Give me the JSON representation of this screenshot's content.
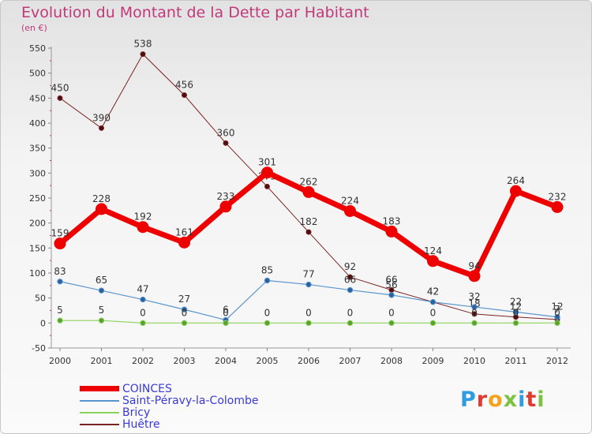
{
  "title": "Evolution du Montant de la Dette par Habitant",
  "subtitle": "(en €)",
  "logo": {
    "text": "Proxiti",
    "colors": [
      "#2f9be0",
      "#e03b2f",
      "#f2a21b",
      "#7cc242",
      "#2f9be0",
      "#e03b2f",
      "#7cc242"
    ]
  },
  "chart_data": {
    "type": "line",
    "x": [
      "2000",
      "2001",
      "2002",
      "2003",
      "2004",
      "2005",
      "2006",
      "2007",
      "2008",
      "2009",
      "2010",
      "2011",
      "2012"
    ],
    "ylim": [
      -50,
      550
    ],
    "yticks": [
      "-50",
      "0",
      "50",
      "100",
      "150",
      "200",
      "250",
      "300",
      "350",
      "400",
      "450",
      "500",
      "550"
    ],
    "grid": false,
    "legend_position": "bottom-left",
    "series": [
      {
        "name": "Huêtre",
        "color": "#7a2323",
        "values": [
          450,
          390,
          538,
          456,
          360,
          273,
          182,
          92,
          66,
          42,
          18,
          12,
          7
        ],
        "labels": [
          "450",
          "390",
          "538",
          "456",
          "360",
          "273",
          "182",
          "92",
          "66",
          "42",
          "18",
          "12",
          "7"
        ]
      },
      {
        "name": "Saint-Péravy-la-Colombe",
        "color": "#5a94cc",
        "values": [
          83,
          65,
          47,
          27,
          6,
          85,
          77,
          66,
          56,
          42,
          32,
          22,
          12
        ],
        "labels": [
          "83",
          "65",
          "47",
          "27",
          "6",
          "85",
          "77",
          "66",
          "56",
          "42",
          "32",
          "22",
          "12"
        ]
      },
      {
        "name": "Bricy",
        "color": "#8ad35a",
        "values": [
          5,
          5,
          0,
          0,
          0,
          0,
          0,
          0,
          0,
          0,
          0,
          0,
          0
        ],
        "labels": [
          "5",
          "5",
          "0",
          "0",
          "0",
          "0",
          "0",
          "0",
          "0",
          "0",
          "0",
          "0",
          "0"
        ]
      },
      {
        "name": "COINCES",
        "color": "#ee0000",
        "values": [
          159,
          228,
          192,
          161,
          233,
          301,
          262,
          224,
          183,
          124,
          94,
          264,
          232
        ],
        "labels": [
          "159",
          "228",
          "192",
          "161",
          "233",
          "301",
          "262",
          "224",
          "183",
          "124",
          "94",
          "264",
          "232"
        ]
      }
    ],
    "legend": [
      "COINCES",
      "Saint-Péravy-la-Colombe",
      "Bricy",
      "Huêtre"
    ]
  }
}
